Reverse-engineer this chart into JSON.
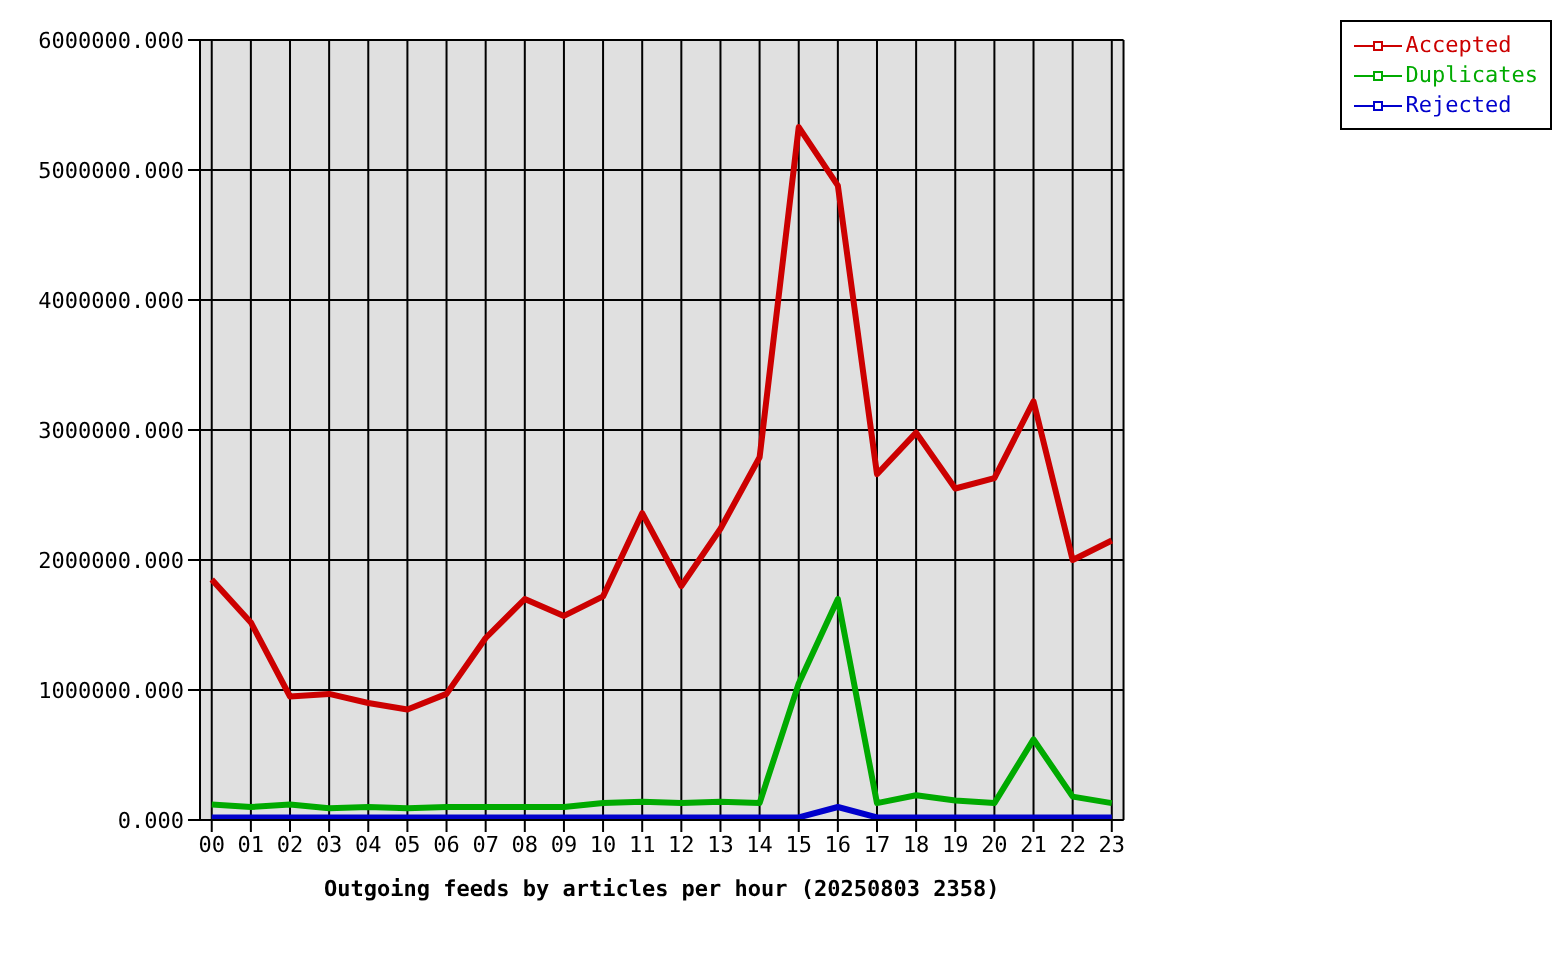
{
  "chart_data": {
    "type": "line",
    "xlabel": "Outgoing feeds by articles per hour (20250803 2358)",
    "categories": [
      "00",
      "01",
      "02",
      "03",
      "04",
      "05",
      "06",
      "07",
      "08",
      "09",
      "10",
      "11",
      "12",
      "13",
      "14",
      "15",
      "16",
      "17",
      "18",
      "19",
      "20",
      "21",
      "22",
      "23"
    ],
    "series": [
      {
        "name": "Accepted",
        "color": "#cc0000",
        "values": [
          1850000,
          1520000,
          950000,
          970000,
          900000,
          850000,
          970000,
          1400000,
          1700000,
          1570000,
          1720000,
          2360000,
          1800000,
          2240000,
          2790000,
          5330000,
          4880000,
          2660000,
          2980000,
          2550000,
          2630000,
          3220000,
          2000000,
          2150000
        ]
      },
      {
        "name": "Duplicates",
        "color": "#00aa00",
        "values": [
          120000,
          100000,
          120000,
          90000,
          100000,
          90000,
          100000,
          100000,
          100000,
          100000,
          130000,
          140000,
          130000,
          140000,
          130000,
          1050000,
          1700000,
          130000,
          190000,
          150000,
          130000,
          620000,
          180000,
          130000
        ]
      },
      {
        "name": "Rejected",
        "color": "#0000cc",
        "values": [
          20000,
          20000,
          20000,
          20000,
          20000,
          20000,
          20000,
          20000,
          20000,
          20000,
          20000,
          20000,
          20000,
          20000,
          20000,
          20000,
          100000,
          20000,
          20000,
          20000,
          20000,
          20000,
          20000,
          20000
        ]
      }
    ],
    "ylim": [
      0,
      6000000
    ],
    "yticks": [
      {
        "value": 0,
        "label": "0.000"
      },
      {
        "value": 1000000,
        "label": "1000000.000"
      },
      {
        "value": 2000000,
        "label": "2000000.000"
      },
      {
        "value": 3000000,
        "label": "3000000.000"
      },
      {
        "value": 4000000,
        "label": "4000000.000"
      },
      {
        "value": 5000000,
        "label": "5000000.000"
      },
      {
        "value": 6000000,
        "label": "6000000.000"
      }
    ],
    "grid": true,
    "legend": "top right",
    "marker": "none",
    "line_style": "solid"
  }
}
